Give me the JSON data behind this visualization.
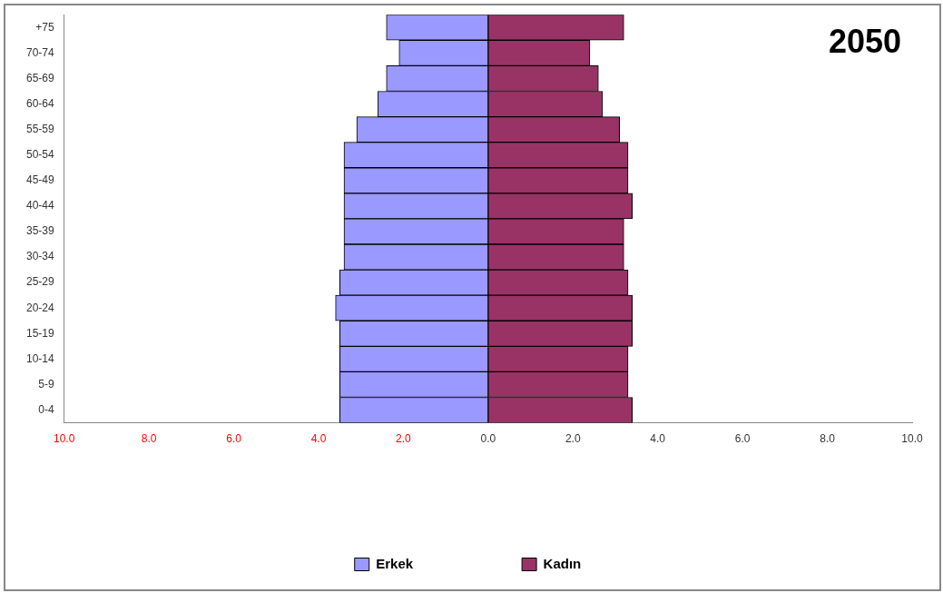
{
  "chart_data": {
    "type": "bar",
    "orientation": "horizontal",
    "stacked": true,
    "grid": false,
    "legend": "bottom",
    "annotations": [
      "2050"
    ],
    "categories": [
      "+75",
      "70-74",
      "65-69",
      "60-64",
      "55-59",
      "50-54",
      "45-49",
      "40-44",
      "35-39",
      "30-34",
      "25-29",
      "20-24",
      "15-19",
      "10-14",
      "5-9",
      "0-4"
    ],
    "series": [
      {
        "name": "Erkek",
        "color": "#9999ff",
        "values": [
          -2.4,
          -2.1,
          -2.4,
          -2.6,
          -3.1,
          -3.4,
          -3.4,
          -3.4,
          -3.4,
          -3.4,
          -3.5,
          -3.6,
          -3.5,
          -3.5,
          -3.5,
          -3.5
        ]
      },
      {
        "name": "Kadın",
        "color": "#993366",
        "values": [
          3.2,
          2.4,
          2.6,
          2.7,
          3.1,
          3.3,
          3.3,
          3.4,
          3.2,
          3.2,
          3.3,
          3.4,
          3.4,
          3.3,
          3.3,
          3.4
        ]
      }
    ],
    "xlim": [
      -10,
      10
    ],
    "xticks": [
      {
        "value": -10,
        "label": "10.0"
      },
      {
        "value": -8,
        "label": "8.0"
      },
      {
        "value": -6,
        "label": "6.0"
      },
      {
        "value": -4,
        "label": "4.0"
      },
      {
        "value": -2,
        "label": "2.0"
      },
      {
        "value": 0,
        "label": "0.0"
      },
      {
        "value": 2,
        "label": "2.0"
      },
      {
        "value": 4,
        "label": "4.0"
      },
      {
        "value": 6,
        "label": "6.0"
      },
      {
        "value": 8,
        "label": "8.0"
      },
      {
        "value": 10,
        "label": "10.0"
      }
    ]
  }
}
